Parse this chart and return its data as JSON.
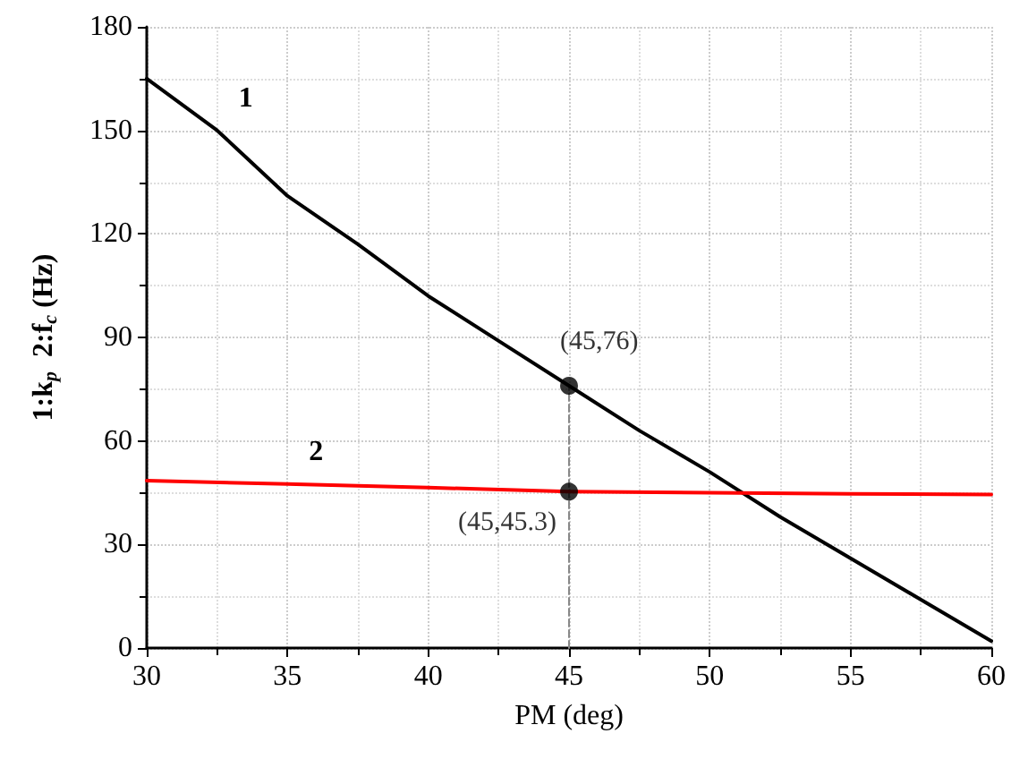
{
  "chart_data": {
    "type": "line",
    "xlabel": "PM (deg)",
    "ylabel": "1:k$_{p}$  2:f$_{c}$ (Hz)",
    "xlim": [
      30,
      60
    ],
    "xticks": [
      30,
      35,
      40,
      45,
      50,
      55,
      60
    ],
    "ylim": [
      0,
      180
    ],
    "yticks": [
      0,
      30,
      60,
      90,
      120,
      150,
      180
    ],
    "grid": true,
    "legend": false,
    "marker": "none",
    "series": [
      {
        "name": "1",
        "color": "#000000",
        "x": [
          30,
          32.5,
          35,
          37.5,
          40,
          42.5,
          45,
          47.5,
          50,
          52.5,
          55,
          57.5,
          60
        ],
        "values": [
          165,
          150,
          131,
          117,
          102,
          89,
          76,
          63,
          51,
          38,
          26,
          14,
          2
        ]
      },
      {
        "name": "2",
        "color": "#ff0000",
        "x": [
          30,
          35,
          40,
          45,
          50,
          55,
          60
        ],
        "values": [
          48.5,
          47.5,
          46.5,
          45.3,
          45,
          44.7,
          44.5
        ]
      },
      {
        "type": "scatter",
        "color": "#000000",
        "marker": "circle",
        "x": [
          45,
          45
        ],
        "values": [
          76,
          45.3
        ]
      },
      {
        "color": "#888888",
        "line_style": "dashed",
        "x": [
          45,
          45
        ],
        "values": [
          0,
          76
        ]
      }
    ],
    "annotations": [
      {
        "text": "(45,76)",
        "x": 45,
        "y": 76
      },
      {
        "text": "(45,45.3)",
        "x": 45,
        "y": 45.3
      }
    ]
  }
}
